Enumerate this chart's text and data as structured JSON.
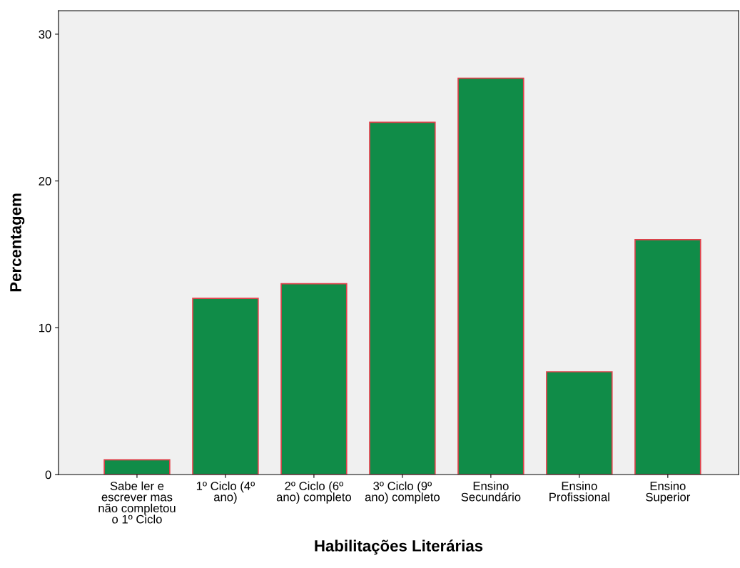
{
  "chart_data": {
    "type": "bar",
    "xlabel": "Habilitações Literárias",
    "ylabel": "Percentagem",
    "categories": [
      "Sabe ler e\nescrever mas\nnão completou\no 1º Ciclo",
      "1º Ciclo (4º\nano)",
      "2º Ciclo (6º\nano) completo",
      "3º Ciclo (9º\nano) completo",
      "Ensino\nSecundário",
      "Ensino\nProfissional",
      "Ensino\nSuperior"
    ],
    "values": [
      1,
      12,
      13,
      24,
      27,
      7,
      16
    ],
    "color": "#108c48",
    "ylim": [
      0,
      31.6
    ],
    "yticks": [
      0,
      10,
      20,
      30
    ],
    "grid": false,
    "legend": false
  }
}
